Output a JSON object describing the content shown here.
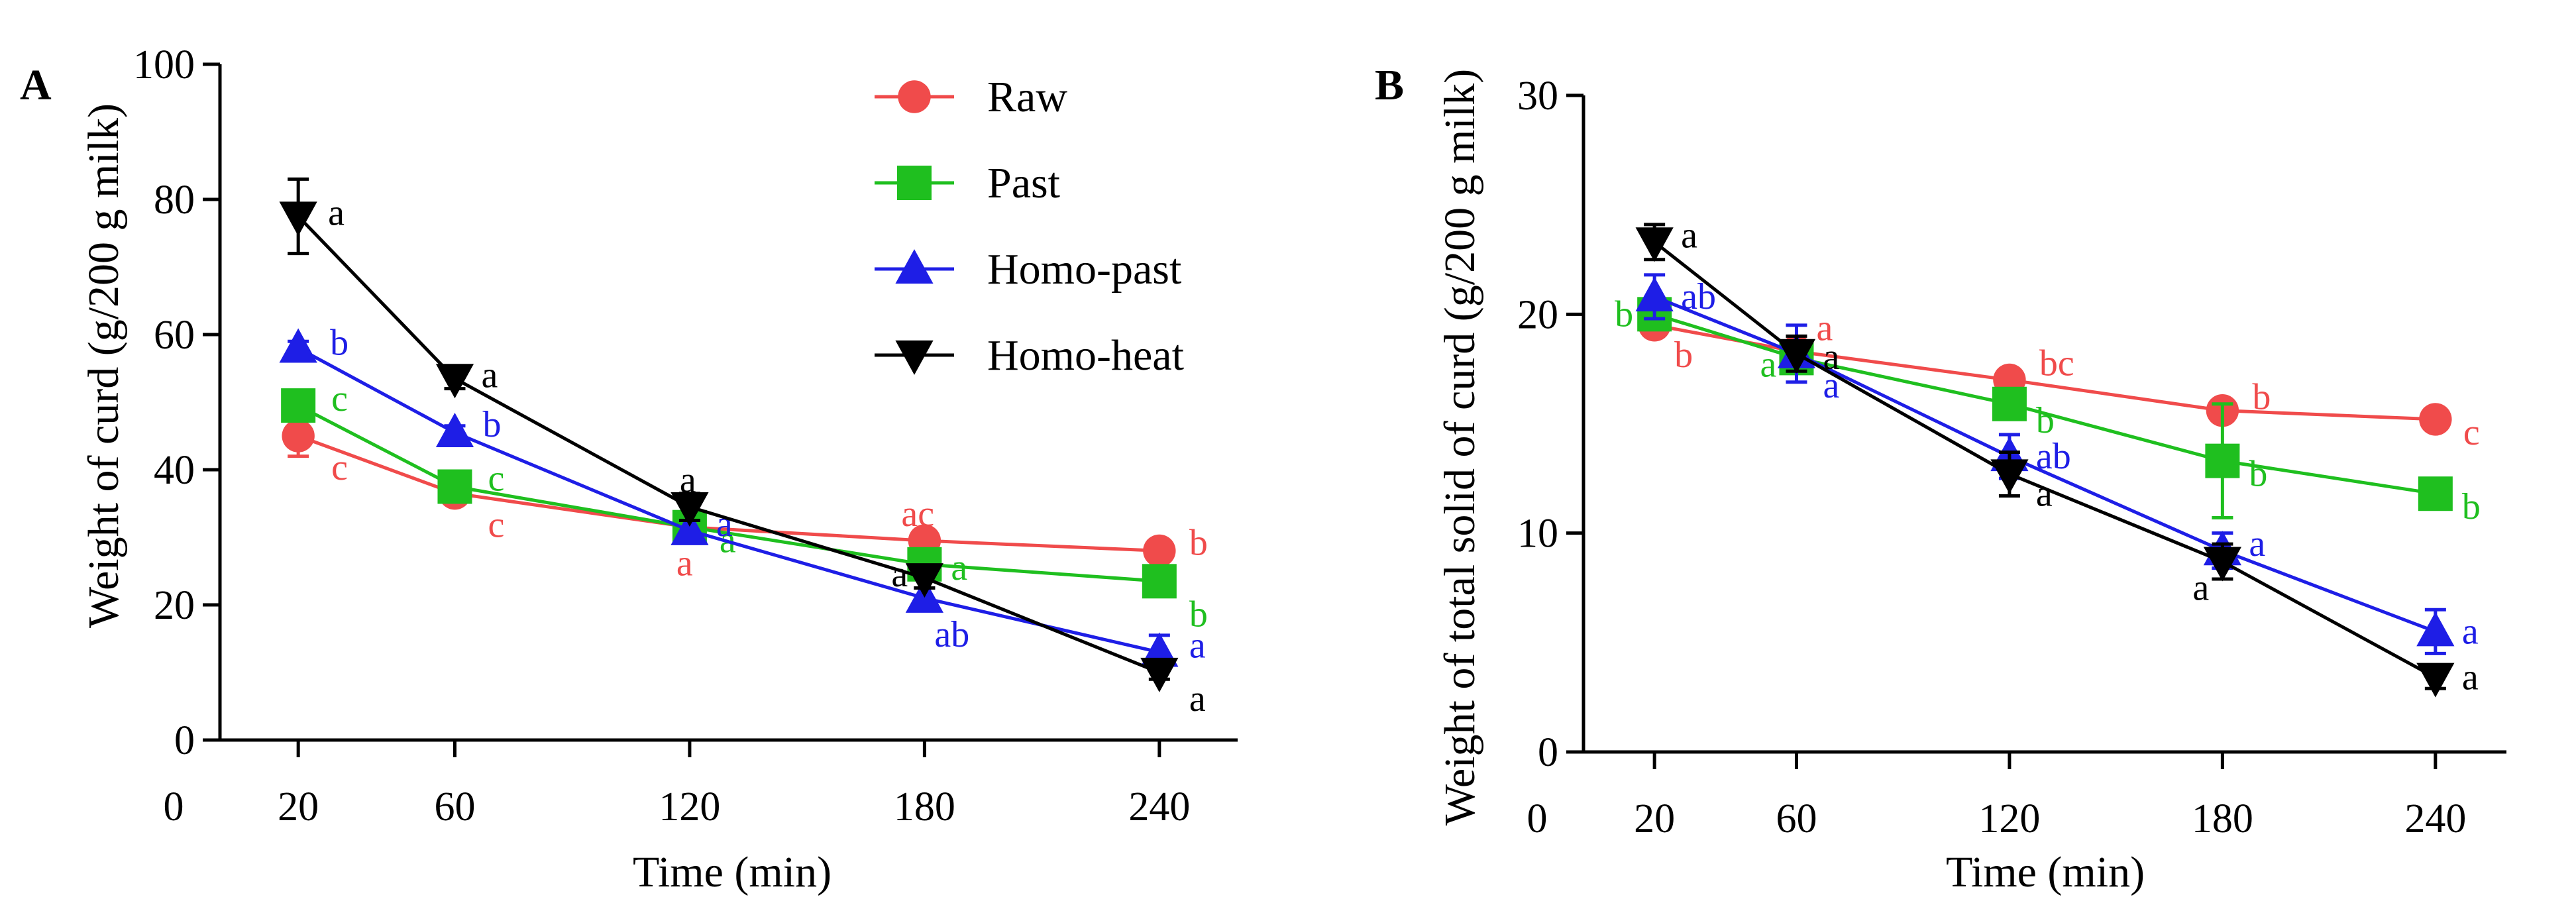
{
  "colors": {
    "Raw": "#f04b4b",
    "Past": "#1fbf1f",
    "Homo-past": "#1e1ee6",
    "Homo-heat": "#000000"
  },
  "chart_data": [
    {
      "type": "line",
      "panel": "A",
      "xlabel": "Time (min)",
      "ylabel": "Weight of curd (g/200 g milk)",
      "xlim": [
        0,
        260
      ],
      "ylim": [
        0,
        100
      ],
      "xticks": [
        0,
        20,
        60,
        120,
        180,
        240
      ],
      "yticks": [
        0,
        20,
        40,
        60,
        80,
        100
      ],
      "x": [
        20,
        60,
        120,
        180,
        240
      ],
      "legend_position": "top-right",
      "series": [
        {
          "name": "Raw",
          "marker": "circle",
          "values": [
            45,
            36.5,
            31.5,
            29.5,
            28
          ],
          "errors": [
            3,
            1,
            1,
            1,
            1
          ],
          "sig": [
            "c",
            "c",
            "a",
            "ac",
            "b"
          ]
        },
        {
          "name": "Past",
          "marker": "square",
          "values": [
            49.5,
            37.5,
            31.5,
            26,
            23.5
          ],
          "errors": [
            1,
            1,
            1,
            1,
            1
          ],
          "sig": [
            "c",
            "c",
            "a",
            "a",
            "b"
          ]
        },
        {
          "name": "Homo-past",
          "marker": "triangle-up",
          "values": [
            58,
            45.5,
            31,
            21,
            13
          ],
          "errors": [
            1,
            1,
            1.5,
            1.5,
            2.5
          ],
          "sig": [
            "b",
            "b",
            "a",
            "ab",
            "a"
          ]
        },
        {
          "name": "Homo-heat",
          "marker": "triangle-down",
          "values": [
            77.5,
            53.5,
            34.5,
            24,
            10
          ],
          "errors": [
            5.5,
            1.5,
            2,
            1.5,
            1
          ],
          "sig": [
            "a",
            "a",
            "a",
            "a",
            "a"
          ]
        }
      ]
    },
    {
      "type": "line",
      "panel": "B",
      "xlabel": "Time (min)",
      "ylabel": "Weight of total solid of curd (g/200 g milk)",
      "xlim": [
        0,
        260
      ],
      "ylim": [
        0,
        30
      ],
      "xticks": [
        0,
        20,
        60,
        120,
        180,
        240
      ],
      "yticks": [
        0,
        10,
        20,
        30
      ],
      "x": [
        20,
        60,
        120,
        180,
        240
      ],
      "series": [
        {
          "name": "Raw",
          "marker": "circle",
          "values": [
            19.5,
            18.3,
            17,
            15.6,
            15.2
          ],
          "errors": [
            0.3,
            0.3,
            0.3,
            0.4,
            0.2
          ],
          "sig": [
            "b",
            "a",
            "bc",
            "b",
            "c"
          ]
        },
        {
          "name": "Past",
          "marker": "square",
          "values": [
            20,
            18,
            15.9,
            13.3,
            11.8
          ],
          "errors": [
            0.4,
            0.5,
            0.7,
            2.6,
            0.3
          ],
          "sig": [
            "b",
            "a",
            "b",
            "b",
            "b"
          ]
        },
        {
          "name": "Homo-past",
          "marker": "triangle-up",
          "values": [
            20.8,
            18.2,
            13.5,
            9.2,
            5.5
          ],
          "errors": [
            1,
            1.3,
            1,
            0.8,
            1
          ],
          "sig": [
            "ab",
            "a",
            "ab",
            "a",
            "a"
          ]
        },
        {
          "name": "Homo-heat",
          "marker": "triangle-down",
          "values": [
            23.3,
            18.2,
            12.7,
            8.7,
            3.4
          ],
          "errors": [
            0.8,
            0.8,
            1,
            0.8,
            0.5
          ],
          "sig": [
            "a",
            "a",
            "a",
            "a",
            "a"
          ]
        }
      ]
    }
  ]
}
